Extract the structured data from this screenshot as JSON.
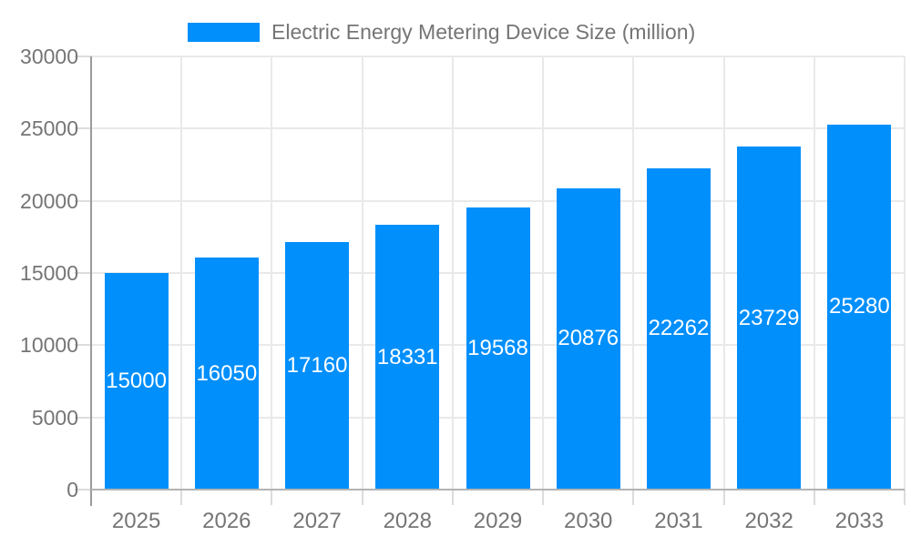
{
  "chart_data": {
    "type": "bar",
    "title": "Electric Energy Metering Device Size (million)",
    "legend": {
      "position": "top",
      "label": "Electric Energy Metering Device Size (million)"
    },
    "categories": [
      "2025",
      "2026",
      "2027",
      "2028",
      "2029",
      "2030",
      "2031",
      "2032",
      "2033"
    ],
    "values": [
      15000,
      16050,
      17160,
      18331,
      19568,
      20876,
      22262,
      23729,
      25280
    ],
    "value_labels": [
      "15000",
      "16050",
      "17160",
      "18331",
      "19568",
      "20876",
      "22262",
      "23729",
      "25280"
    ],
    "xlabel": "",
    "ylabel": "",
    "ylim": [
      0,
      30000
    ],
    "y_ticks": [
      0,
      5000,
      10000,
      15000,
      20000,
      25000,
      30000
    ],
    "y_tick_labels": [
      "0",
      "5000",
      "10000",
      "15000",
      "20000",
      "25000",
      "30000"
    ],
    "grid": true,
    "value_label_position": "inside-center",
    "colors": {
      "bar": "#008FFB",
      "grid": "#e9e9e9",
      "x_axis": "#b3b3b3",
      "y_axis": "#9b9b9b",
      "tick": "#dcdcdc",
      "label_text": "#757575",
      "value_text": "#ffffff",
      "background": "#ffffff"
    }
  }
}
